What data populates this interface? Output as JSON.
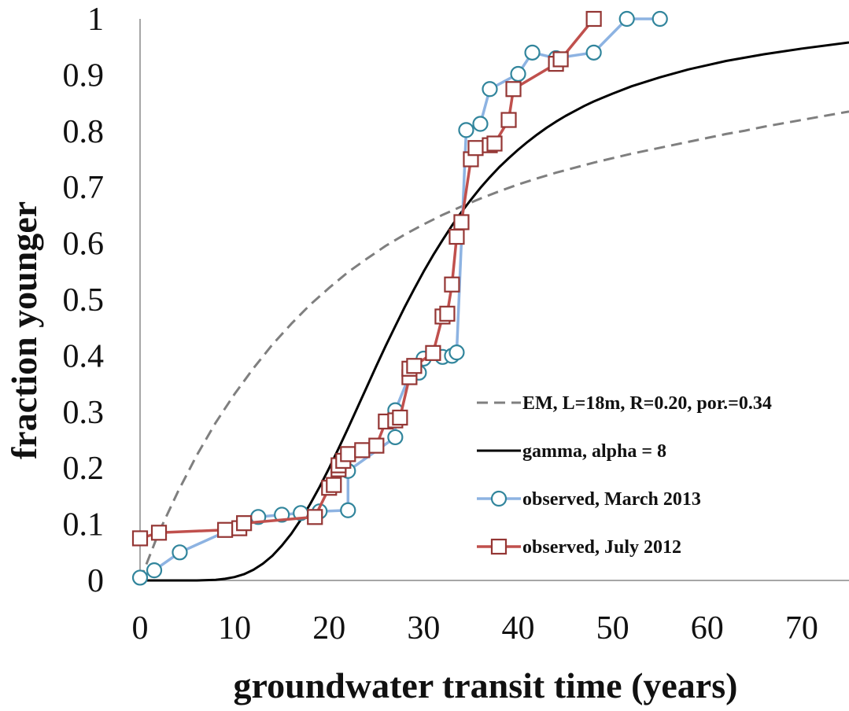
{
  "chart_data": {
    "type": "line",
    "title": "",
    "xlabel": "groundwater transit time (years)",
    "ylabel": "fraction younger",
    "xlim": [
      0,
      75
    ],
    "ylim": [
      0,
      1
    ],
    "xticks": [
      0,
      10,
      20,
      30,
      40,
      50,
      60,
      70
    ],
    "yticks": [
      0,
      0.1,
      0.2,
      0.3,
      0.4,
      0.5,
      0.6,
      0.7,
      0.8,
      0.9,
      1
    ],
    "ytick_labels": [
      "0",
      "0.1",
      "0.2",
      "0.3",
      "0.4",
      "0.5",
      "0.6",
      "0.7",
      "0.8",
      "0.9",
      "1"
    ],
    "grid": false,
    "legend_position": "lower-right",
    "series": [
      {
        "name": "EM, L=18m, R=0.20, por.=0.34",
        "style": "dashed",
        "color": "#7f7f7f",
        "marker": "none",
        "x": [
          0,
          2,
          4,
          6,
          8,
          10,
          12,
          14,
          16,
          18,
          20,
          22,
          24,
          26,
          28,
          30,
          32,
          34,
          36,
          38,
          40,
          42,
          44,
          46,
          48,
          50,
          52,
          54,
          56,
          58,
          60,
          62,
          64,
          66,
          68,
          70,
          72,
          75
        ],
        "y": [
          0,
          0.086,
          0.158,
          0.223,
          0.281,
          0.332,
          0.378,
          0.42,
          0.457,
          0.491,
          0.521,
          0.549,
          0.573,
          0.596,
          0.616,
          0.634,
          0.651,
          0.666,
          0.68,
          0.693,
          0.705,
          0.716,
          0.726,
          0.735,
          0.744,
          0.752,
          0.76,
          0.767,
          0.774,
          0.781,
          0.788,
          0.795,
          0.801,
          0.808,
          0.814,
          0.82,
          0.826,
          0.835
        ]
      },
      {
        "name": "gamma, alpha = 8",
        "style": "solid",
        "color": "#000000",
        "marker": "none",
        "x": [
          0,
          6,
          8,
          9,
          10,
          11,
          12,
          13,
          14,
          15,
          16,
          17,
          18,
          19,
          20,
          21,
          22,
          23,
          24,
          25,
          26,
          27,
          28,
          29,
          30,
          31,
          32,
          33,
          34,
          35,
          36,
          37,
          38,
          39,
          40,
          41,
          42,
          43,
          44,
          45,
          46,
          47,
          48,
          50,
          52,
          55,
          58,
          62,
          66,
          70,
          75
        ],
        "y": [
          0,
          0,
          0.001,
          0.003,
          0.006,
          0.011,
          0.019,
          0.03,
          0.044,
          0.062,
          0.083,
          0.108,
          0.136,
          0.167,
          0.2,
          0.235,
          0.271,
          0.308,
          0.345,
          0.382,
          0.418,
          0.453,
          0.487,
          0.519,
          0.55,
          0.579,
          0.606,
          0.632,
          0.656,
          0.678,
          0.699,
          0.718,
          0.736,
          0.752,
          0.767,
          0.781,
          0.794,
          0.806,
          0.817,
          0.827,
          0.836,
          0.845,
          0.853,
          0.867,
          0.88,
          0.896,
          0.91,
          0.925,
          0.937,
          0.947,
          0.958
        ]
      },
      {
        "name": "observed, March 2013",
        "style": "solid",
        "color": "#8db3e2",
        "marker": "circle",
        "marker_color": "#31859c",
        "x": [
          0,
          1.5,
          4.2,
          12.5,
          15,
          17,
          19,
          22,
          22,
          27,
          27,
          28.5,
          29.5,
          30,
          32,
          33,
          33.5,
          34.5,
          36,
          37,
          40,
          41.5,
          44,
          48,
          51.5,
          55
        ],
        "y": [
          0.005,
          0.018,
          0.05,
          0.113,
          0.117,
          0.12,
          0.123,
          0.125,
          0.195,
          0.255,
          0.303,
          0.365,
          0.37,
          0.395,
          0.398,
          0.4,
          0.406,
          0.802,
          0.813,
          0.875,
          0.902,
          0.94,
          0.93,
          0.94,
          1.0,
          1.0
        ]
      },
      {
        "name": "observed, July 2012",
        "style": "solid",
        "color": "#c0504d",
        "marker": "square",
        "marker_color": "#943634",
        "x": [
          0,
          2,
          9,
          10.5,
          11,
          18.5,
          20,
          20.5,
          21,
          21,
          21.5,
          22,
          23.5,
          25,
          26,
          27,
          27.5,
          28.5,
          28.5,
          29,
          31,
          32,
          32.5,
          33,
          33.5,
          34,
          35,
          35.5,
          37,
          37.5,
          39,
          39.5,
          44,
          44.5,
          48
        ],
        "y": [
          0.075,
          0.085,
          0.09,
          0.093,
          0.102,
          0.113,
          0.165,
          0.17,
          0.198,
          0.205,
          0.213,
          0.225,
          0.232,
          0.24,
          0.283,
          0.285,
          0.29,
          0.362,
          0.377,
          0.382,
          0.405,
          0.47,
          0.475,
          0.527,
          0.612,
          0.638,
          0.75,
          0.77,
          0.775,
          0.778,
          0.82,
          0.875,
          0.92,
          0.928,
          1.0
        ]
      }
    ]
  }
}
